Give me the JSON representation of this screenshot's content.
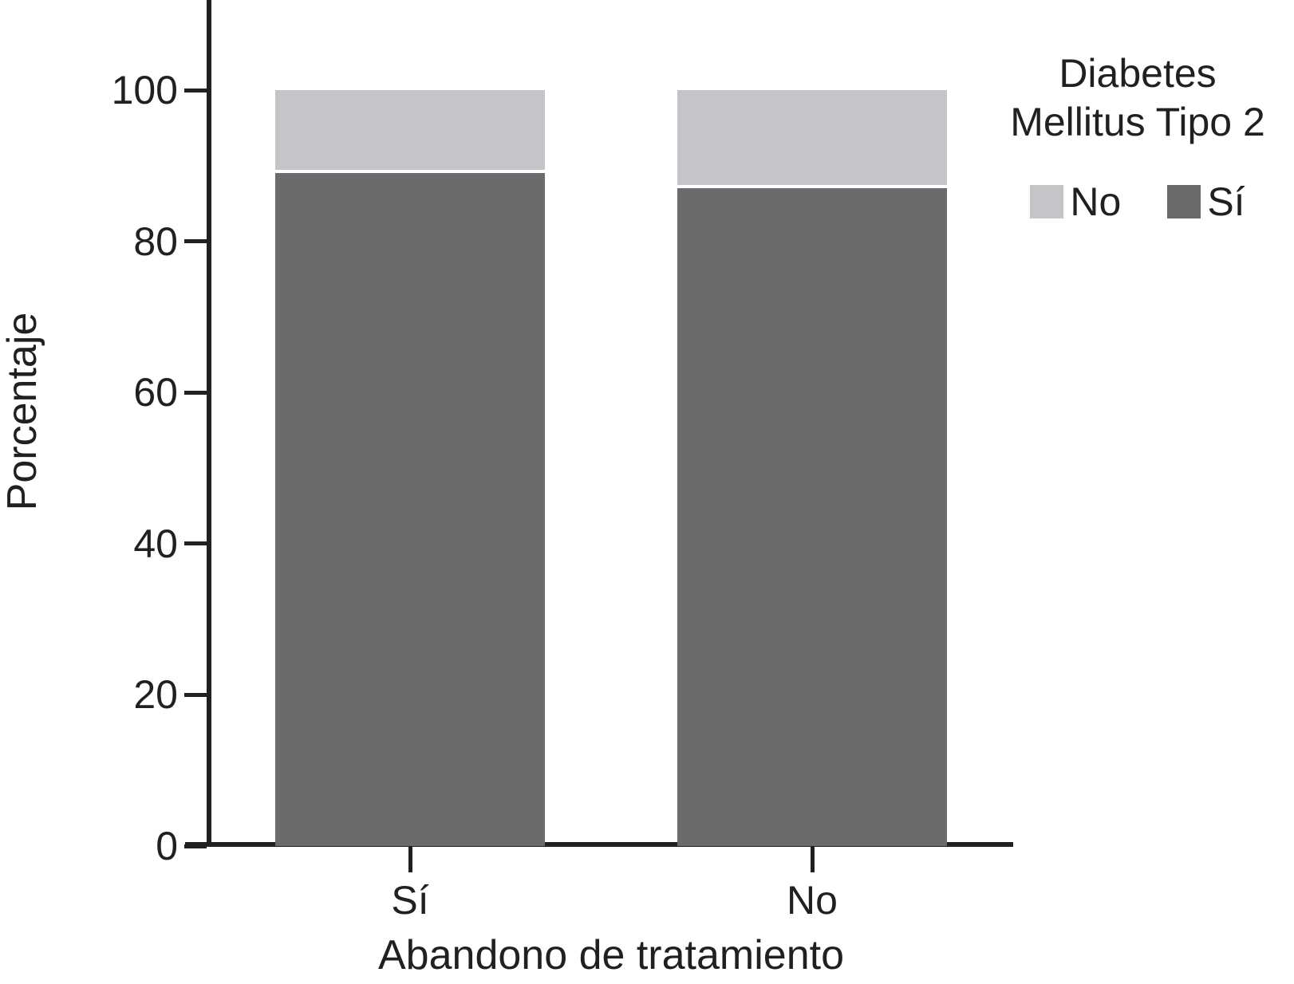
{
  "chart_data": {
    "type": "bar",
    "stacked": true,
    "units": "percent",
    "title": "",
    "xlabel": "Abandono de tratamiento",
    "ylabel": "Porcentaje",
    "categories": [
      "Sí",
      "No"
    ],
    "series": [
      {
        "name": "Sí",
        "color": "#696b6d",
        "values": [
          89,
          87
        ]
      },
      {
        "name": "No",
        "color": "#c3c5c9",
        "values": [
          11,
          13
        ]
      }
    ],
    "stack_order_bottom_to_top": [
      "Sí",
      "No"
    ],
    "ylim": [
      0,
      100
    ],
    "yticks": [
      0,
      20,
      40,
      60,
      80,
      100
    ],
    "grid": false,
    "legend": {
      "title_lines": [
        "Diabetes",
        "Mellitus Tipo 2"
      ],
      "position": "top-right",
      "items": [
        {
          "label": "No",
          "color": "#c3c5c9"
        },
        {
          "label": "Sí",
          "color": "#696b6d"
        }
      ]
    }
  },
  "colors": {
    "background": "#ffffff",
    "axis": "#221f20",
    "text": "#221f20",
    "segment_separator": "#ffffff"
  }
}
